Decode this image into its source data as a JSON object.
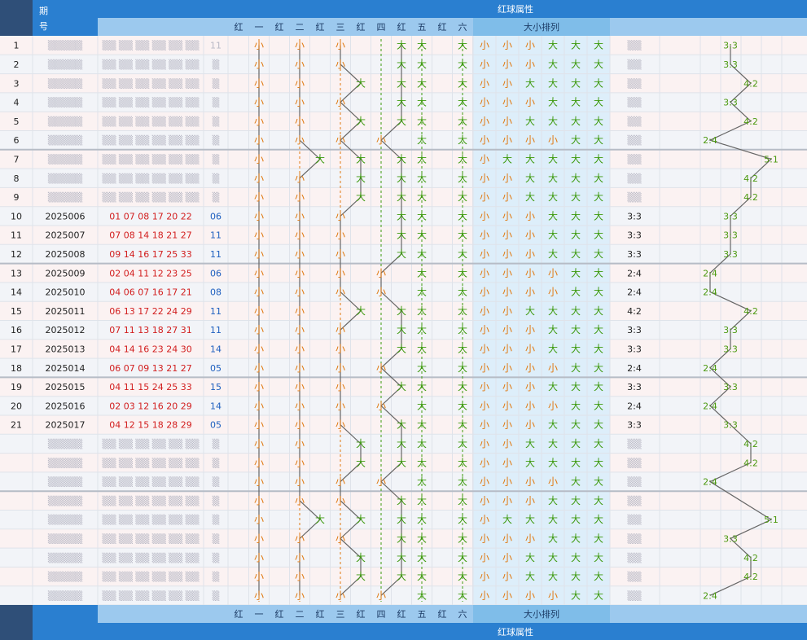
{
  "header": {
    "period_label": "期号",
    "red_attr_title": "红球属性",
    "size_order_title": "大小排列",
    "position_labels": [
      "红",
      "一",
      "红",
      "二",
      "红",
      "三",
      "红",
      "四",
      "红",
      "五",
      "红",
      "六"
    ]
  },
  "rows": [
    {
      "idx": "1",
      "period": "",
      "reds": "",
      "blue": "11",
      "sizes": [
        "小",
        "小",
        "小",
        "大",
        "大",
        "大"
      ],
      "order": [
        "小",
        "小",
        "小",
        "大",
        "大",
        "大"
      ],
      "ratio": "3:3",
      "visible": false
    },
    {
      "idx": "2",
      "period": "",
      "reds": "",
      "blue": "",
      "sizes": [
        "小",
        "小",
        "小",
        "大",
        "大",
        "大"
      ],
      "order": [
        "小",
        "小",
        "小",
        "大",
        "大",
        "大"
      ],
      "ratio": "3:3",
      "visible": false
    },
    {
      "idx": "3",
      "period": "",
      "reds": "",
      "blue": "",
      "sizes": [
        "小",
        "小",
        "大",
        "大",
        "大",
        "大"
      ],
      "order": [
        "小",
        "小",
        "大",
        "大",
        "大",
        "大"
      ],
      "ratio": "4:2",
      "visible": false
    },
    {
      "idx": "4",
      "period": "",
      "reds": "",
      "blue": "",
      "sizes": [
        "小",
        "小",
        "小",
        "大",
        "大",
        "大"
      ],
      "order": [
        "小",
        "小",
        "小",
        "大",
        "大",
        "大"
      ],
      "ratio": "3:3",
      "visible": false
    },
    {
      "idx": "5",
      "period": "",
      "reds": "",
      "blue": "",
      "sizes": [
        "小",
        "小",
        "大",
        "大",
        "大",
        "大"
      ],
      "order": [
        "小",
        "小",
        "大",
        "大",
        "大",
        "大"
      ],
      "ratio": "4:2",
      "visible": false
    },
    {
      "idx": "6",
      "period": "",
      "reds": "",
      "blue": "",
      "sizes": [
        "小",
        "小",
        "小",
        "小",
        "大",
        "大"
      ],
      "order": [
        "小",
        "小",
        "小",
        "小",
        "大",
        "大"
      ],
      "ratio": "2:4",
      "visible": false
    },
    {
      "idx": "7",
      "period": "",
      "reds": "",
      "blue": "",
      "sizes": [
        "小",
        "大",
        "大",
        "大",
        "大",
        "大"
      ],
      "order": [
        "小",
        "大",
        "大",
        "大",
        "大",
        "大"
      ],
      "ratio": "5:1",
      "visible": false
    },
    {
      "idx": "8",
      "period": "",
      "reds": "",
      "blue": "",
      "sizes": [
        "小",
        "小",
        "大",
        "大",
        "大",
        "大"
      ],
      "order": [
        "小",
        "小",
        "大",
        "大",
        "大",
        "大"
      ],
      "ratio": "4:2",
      "visible": false
    },
    {
      "idx": "9",
      "period": "",
      "reds": "",
      "blue": "",
      "sizes": [
        "小",
        "小",
        "大",
        "大",
        "大",
        "大"
      ],
      "order": [
        "小",
        "小",
        "大",
        "大",
        "大",
        "大"
      ],
      "ratio": "4:2",
      "visible": false
    },
    {
      "idx": "10",
      "period": "2025006",
      "reds": "01 07 08 17 20 22",
      "blue": "06",
      "sizes": [
        "小",
        "小",
        "小",
        "大",
        "大",
        "大"
      ],
      "order": [
        "小",
        "小",
        "小",
        "大",
        "大",
        "大"
      ],
      "ratio": "3:3",
      "visible": true
    },
    {
      "idx": "11",
      "period": "2025007",
      "reds": "07 08 14 18 21 27",
      "blue": "11",
      "sizes": [
        "小",
        "小",
        "小",
        "大",
        "大",
        "大"
      ],
      "order": [
        "小",
        "小",
        "小",
        "大",
        "大",
        "大"
      ],
      "ratio": "3:3",
      "visible": true
    },
    {
      "idx": "12",
      "period": "2025008",
      "reds": "09 14 16 17 25 33",
      "blue": "11",
      "sizes": [
        "小",
        "小",
        "小",
        "大",
        "大",
        "大"
      ],
      "order": [
        "小",
        "小",
        "小",
        "大",
        "大",
        "大"
      ],
      "ratio": "3:3",
      "visible": true
    },
    {
      "idx": "13",
      "period": "2025009",
      "reds": "02 04 11 12 23 25",
      "blue": "06",
      "sizes": [
        "小",
        "小",
        "小",
        "小",
        "大",
        "大"
      ],
      "order": [
        "小",
        "小",
        "小",
        "小",
        "大",
        "大"
      ],
      "ratio": "2:4",
      "visible": true
    },
    {
      "idx": "14",
      "period": "2025010",
      "reds": "04 06 07 16 17 21",
      "blue": "08",
      "sizes": [
        "小",
        "小",
        "小",
        "小",
        "大",
        "大"
      ],
      "order": [
        "小",
        "小",
        "小",
        "小",
        "大",
        "大"
      ],
      "ratio": "2:4",
      "visible": true
    },
    {
      "idx": "15",
      "period": "2025011",
      "reds": "06 13 17 22 24 29",
      "blue": "11",
      "sizes": [
        "小",
        "小",
        "大",
        "大",
        "大",
        "大"
      ],
      "order": [
        "小",
        "小",
        "大",
        "大",
        "大",
        "大"
      ],
      "ratio": "4:2",
      "visible": true
    },
    {
      "idx": "16",
      "period": "2025012",
      "reds": "07 11 13 18 27 31",
      "blue": "11",
      "sizes": [
        "小",
        "小",
        "小",
        "大",
        "大",
        "大"
      ],
      "order": [
        "小",
        "小",
        "小",
        "大",
        "大",
        "大"
      ],
      "ratio": "3:3",
      "visible": true
    },
    {
      "idx": "17",
      "period": "2025013",
      "reds": "04 14 16 23 24 30",
      "blue": "14",
      "sizes": [
        "小",
        "小",
        "小",
        "大",
        "大",
        "大"
      ],
      "order": [
        "小",
        "小",
        "小",
        "大",
        "大",
        "大"
      ],
      "ratio": "3:3",
      "visible": true
    },
    {
      "idx": "18",
      "period": "2025014",
      "reds": "06 07 09 13 21 27",
      "blue": "05",
      "sizes": [
        "小",
        "小",
        "小",
        "小",
        "大",
        "大"
      ],
      "order": [
        "小",
        "小",
        "小",
        "小",
        "大",
        "大"
      ],
      "ratio": "2:4",
      "visible": true
    },
    {
      "idx": "19",
      "period": "2025015",
      "reds": "04 11 15 24 25 33",
      "blue": "15",
      "sizes": [
        "小",
        "小",
        "小",
        "大",
        "大",
        "大"
      ],
      "order": [
        "小",
        "小",
        "小",
        "大",
        "大",
        "大"
      ],
      "ratio": "3:3",
      "visible": true
    },
    {
      "idx": "20",
      "period": "2025016",
      "reds": "02 03 12 16 20 29",
      "blue": "14",
      "sizes": [
        "小",
        "小",
        "小",
        "小",
        "大",
        "大"
      ],
      "order": [
        "小",
        "小",
        "小",
        "小",
        "大",
        "大"
      ],
      "ratio": "2:4",
      "visible": true
    },
    {
      "idx": "21",
      "period": "2025017",
      "reds": "04 12 15 18 28 29",
      "blue": "05",
      "sizes": [
        "小",
        "小",
        "小",
        "大",
        "大",
        "大"
      ],
      "order": [
        "小",
        "小",
        "小",
        "大",
        "大",
        "大"
      ],
      "ratio": "3:3",
      "visible": true
    },
    {
      "idx": "",
      "period": "",
      "reds": "",
      "blue": "",
      "sizes": [
        "小",
        "小",
        "大",
        "大",
        "大",
        "大"
      ],
      "order": [
        "小",
        "小",
        "大",
        "大",
        "大",
        "大"
      ],
      "ratio": "4:2",
      "visible": false
    },
    {
      "idx": "",
      "period": "",
      "reds": "",
      "blue": "",
      "sizes": [
        "小",
        "小",
        "大",
        "大",
        "大",
        "大"
      ],
      "order": [
        "小",
        "小",
        "大",
        "大",
        "大",
        "大"
      ],
      "ratio": "4:2",
      "visible": false
    },
    {
      "idx": "",
      "period": "",
      "reds": "",
      "blue": "",
      "sizes": [
        "小",
        "小",
        "小",
        "小",
        "大",
        "大"
      ],
      "order": [
        "小",
        "小",
        "小",
        "小",
        "大",
        "大"
      ],
      "ratio": "2:4",
      "visible": false
    },
    {
      "idx": "",
      "period": "",
      "reds": "",
      "blue": "",
      "sizes": [
        "小",
        "小",
        "小",
        "大",
        "大",
        "大"
      ],
      "order": [
        "小",
        "小",
        "小",
        "大",
        "大",
        "大"
      ],
      "ratio": "",
      "visible": false
    },
    {
      "idx": "",
      "period": "",
      "reds": "",
      "blue": "",
      "sizes": [
        "小",
        "大",
        "大",
        "大",
        "大",
        "大"
      ],
      "order": [
        "小",
        "大",
        "大",
        "大",
        "大",
        "大"
      ],
      "ratio": "5:1",
      "visible": false
    },
    {
      "idx": "",
      "period": "",
      "reds": "",
      "blue": "",
      "sizes": [
        "小",
        "小",
        "小",
        "大",
        "大",
        "大"
      ],
      "order": [
        "小",
        "小",
        "小",
        "大",
        "大",
        "大"
      ],
      "ratio": "3:3",
      "visible": false
    },
    {
      "idx": "",
      "period": "",
      "reds": "",
      "blue": "",
      "sizes": [
        "小",
        "小",
        "大",
        "大",
        "大",
        "大"
      ],
      "order": [
        "小",
        "小",
        "大",
        "大",
        "大",
        "大"
      ],
      "ratio": "4:2",
      "visible": false
    },
    {
      "idx": "",
      "period": "",
      "reds": "",
      "blue": "",
      "sizes": [
        "小",
        "小",
        "大",
        "大",
        "大",
        "大"
      ],
      "order": [
        "小",
        "小",
        "大",
        "大",
        "大",
        "大"
      ],
      "ratio": "4:2",
      "visible": false
    },
    {
      "idx": "",
      "period": "",
      "reds": "",
      "blue": "",
      "sizes": [
        "小",
        "小",
        "小",
        "小",
        "大",
        "大"
      ],
      "order": [
        "小",
        "小",
        "小",
        "小",
        "大",
        "大"
      ],
      "ratio": "2:4",
      "visible": false
    }
  ],
  "ratio_columns": [
    "2:4",
    "3:3",
    "4:2",
    "5:1"
  ],
  "colors": {
    "header": "#2a7fd0",
    "subheader": "#9cc9ee",
    "small": "#e07a12",
    "big": "#3d9a0e",
    "red_ball": "#d21e1e",
    "blue_ball": "#1e5fbf"
  }
}
